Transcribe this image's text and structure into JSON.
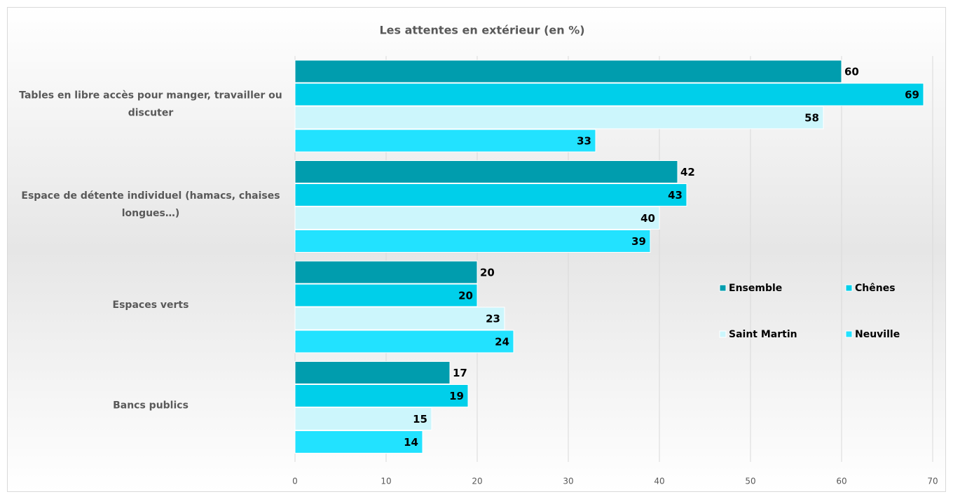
{
  "chart_data": {
    "type": "barh",
    "title": "Les attentes en extérieur (en %)",
    "categories": [
      "Tables en libre accès pour manger, travailler ou discuter",
      "Espace de détente individuel (hamacs, chaises longues…)",
      "Espaces verts",
      "Bancs publics"
    ],
    "series": [
      {
        "name": "Ensemble",
        "color": "#009dae",
        "values": [
          60,
          42,
          20,
          17
        ]
      },
      {
        "name": "Chênes",
        "color": "#00cfea",
        "values": [
          69,
          43,
          20,
          19
        ]
      },
      {
        "name": "Saint Martin",
        "color": "#ccf6fc",
        "values": [
          58,
          40,
          23,
          15
        ]
      },
      {
        "name": "Neuville",
        "color": "#22e2ff",
        "values": [
          33,
          39,
          24,
          14
        ]
      }
    ],
    "xlim": [
      0,
      70
    ],
    "xticks": [
      0,
      10,
      20,
      30,
      40,
      50,
      60,
      70
    ],
    "grid": true,
    "legend": "right"
  }
}
